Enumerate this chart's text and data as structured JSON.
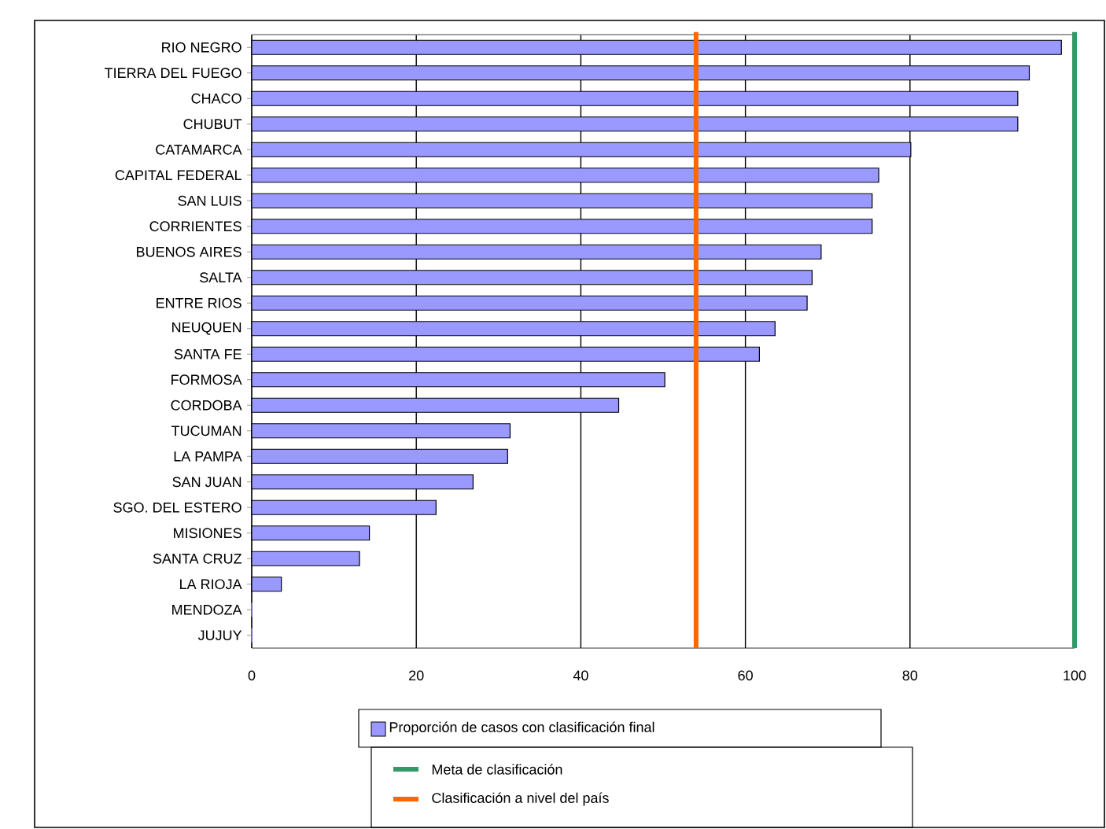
{
  "chart_data": {
    "type": "bar",
    "orientation": "horizontal",
    "categories": [
      "RIO NEGRO",
      "TIERRA DEL FUEGO",
      "CHACO",
      "CHUBUT",
      "CATAMARCA",
      "CAPITAL FEDERAL",
      "SAN LUIS",
      "CORRIENTES",
      "BUENOS AIRES",
      "SALTA",
      "ENTRE RIOS",
      "NEUQUEN",
      "SANTA FE",
      "FORMOSA",
      "CORDOBA",
      "TUCUMAN",
      "LA PAMPA",
      "SAN JUAN",
      "SGO. DEL ESTERO",
      "MISIONES",
      "SANTA CRUZ",
      "LA RIOJA",
      "MENDOZA",
      "JUJUY"
    ],
    "series": [
      {
        "name": "Proporción de casos con clasificación final",
        "color": "#9999ff",
        "values": [
          98.4,
          94.5,
          93.1,
          93.1,
          80.1,
          76.2,
          75.4,
          75.4,
          69.2,
          68.1,
          67.5,
          63.6,
          61.7,
          50.2,
          44.6,
          31.4,
          31.1,
          26.9,
          22.4,
          14.3,
          13.1,
          3.6,
          0,
          0
        ]
      }
    ],
    "xlim": [
      0,
      100
    ],
    "xticks": [
      0,
      20,
      40,
      60,
      80,
      100
    ],
    "grid": "x",
    "legend": "bottom",
    "ref_lines": [
      {
        "axis": "x",
        "value": 100,
        "label": "Meta de clasificación",
        "color": "#339966"
      },
      {
        "axis": "x",
        "value": 54,
        "label": "Clasificación a nivel del país",
        "color": "#ff6600"
      }
    ]
  }
}
